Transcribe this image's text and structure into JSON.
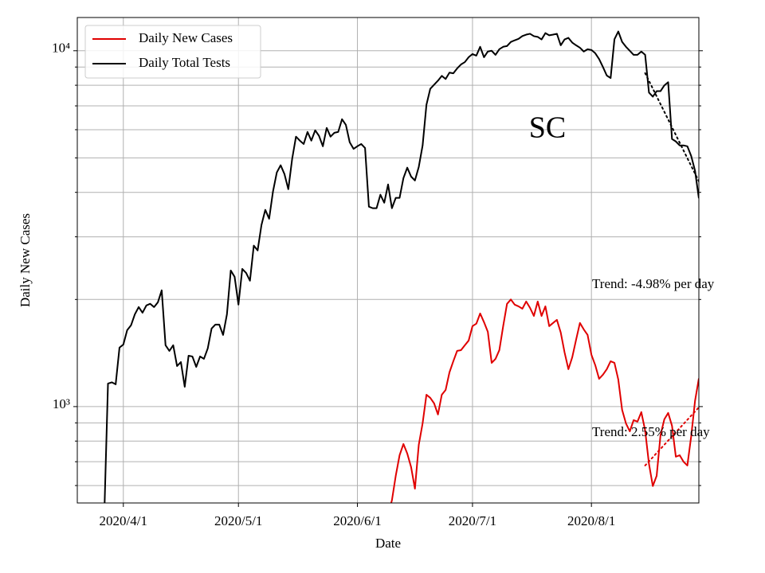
{
  "chart_data": {
    "type": "line",
    "title": "SC",
    "x_label": "Date",
    "y_label": "Daily New Cases",
    "log_scale": true,
    "grid": true,
    "legend_position": "upper-left",
    "xlim": [
      "2020-03-20",
      "2020-08-29"
    ],
    "xticks": [
      {
        "value": "2020-04-01",
        "label": "2020/4/1"
      },
      {
        "value": "2020-05-01",
        "label": "2020/5/1"
      },
      {
        "value": "2020-06-01",
        "label": "2020/6/1"
      },
      {
        "value": "2020-07-01",
        "label": "2020/7/1"
      },
      {
        "value": "2020-08-01",
        "label": "2020/8/1"
      }
    ],
    "ylim": [
      536,
      12400
    ],
    "yticks": [
      {
        "value": 1000,
        "label": "10³"
      },
      {
        "value": 10000,
        "label": "10⁴"
      }
    ],
    "yticks_minor": [
      600,
      700,
      800,
      900,
      2000,
      3000,
      4000,
      5000,
      6000,
      7000,
      8000,
      9000
    ],
    "x": [
      "2020-03-27",
      "2020-03-28",
      "2020-03-29",
      "2020-03-30",
      "2020-03-31",
      "2020-04-01",
      "2020-04-02",
      "2020-04-03",
      "2020-04-04",
      "2020-04-05",
      "2020-04-06",
      "2020-04-07",
      "2020-04-08",
      "2020-04-09",
      "2020-04-10",
      "2020-04-11",
      "2020-04-12",
      "2020-04-13",
      "2020-04-14",
      "2020-04-15",
      "2020-04-16",
      "2020-04-17",
      "2020-04-18",
      "2020-04-19",
      "2020-04-20",
      "2020-04-21",
      "2020-04-22",
      "2020-04-23",
      "2020-04-24",
      "2020-04-25",
      "2020-04-26",
      "2020-04-27",
      "2020-04-28",
      "2020-04-29",
      "2020-04-30",
      "2020-05-01",
      "2020-05-02",
      "2020-05-03",
      "2020-05-04",
      "2020-05-05",
      "2020-05-06",
      "2020-05-07",
      "2020-05-08",
      "2020-05-09",
      "2020-05-10",
      "2020-05-11",
      "2020-05-12",
      "2020-05-13",
      "2020-05-14",
      "2020-05-15",
      "2020-05-16",
      "2020-05-17",
      "2020-05-18",
      "2020-05-19",
      "2020-05-20",
      "2020-05-21",
      "2020-05-22",
      "2020-05-23",
      "2020-05-24",
      "2020-05-25",
      "2020-05-26",
      "2020-05-27",
      "2020-05-28",
      "2020-05-29",
      "2020-05-30",
      "2020-05-31",
      "2020-06-01",
      "2020-06-02",
      "2020-06-03",
      "2020-06-04",
      "2020-06-05",
      "2020-06-06",
      "2020-06-07",
      "2020-06-08",
      "2020-06-09",
      "2020-06-10",
      "2020-06-11",
      "2020-06-12",
      "2020-06-13",
      "2020-06-14",
      "2020-06-15",
      "2020-06-16",
      "2020-06-17",
      "2020-06-18",
      "2020-06-19",
      "2020-06-20",
      "2020-06-21",
      "2020-06-22",
      "2020-06-23",
      "2020-06-24",
      "2020-06-25",
      "2020-06-26",
      "2020-06-27",
      "2020-06-28",
      "2020-06-29",
      "2020-06-30",
      "2020-07-01",
      "2020-07-02",
      "2020-07-03",
      "2020-07-04",
      "2020-07-05",
      "2020-07-06",
      "2020-07-07",
      "2020-07-08",
      "2020-07-09",
      "2020-07-10",
      "2020-07-11",
      "2020-07-12",
      "2020-07-13",
      "2020-07-14",
      "2020-07-15",
      "2020-07-16",
      "2020-07-17",
      "2020-07-18",
      "2020-07-19",
      "2020-07-20",
      "2020-07-21",
      "2020-07-22",
      "2020-07-23",
      "2020-07-24",
      "2020-07-25",
      "2020-07-26",
      "2020-07-27",
      "2020-07-28",
      "2020-07-29",
      "2020-07-30",
      "2020-07-31",
      "2020-08-01",
      "2020-08-02",
      "2020-08-03",
      "2020-08-04",
      "2020-08-05",
      "2020-08-06",
      "2020-08-07",
      "2020-08-08",
      "2020-08-09",
      "2020-08-10",
      "2020-08-11",
      "2020-08-12",
      "2020-08-13",
      "2020-08-14",
      "2020-08-15",
      "2020-08-16",
      "2020-08-17",
      "2020-08-18",
      "2020-08-19",
      "2020-08-20",
      "2020-08-21",
      "2020-08-22",
      "2020-08-23",
      "2020-08-24",
      "2020-08-25",
      "2020-08-26",
      "2020-08-27",
      "2020-08-28",
      "2020-08-29"
    ],
    "series": [
      {
        "name": "Daily New Cases",
        "color": "#e00000",
        "values": [
          null,
          null,
          null,
          null,
          null,
          null,
          null,
          null,
          null,
          null,
          null,
          null,
          null,
          null,
          null,
          null,
          null,
          null,
          null,
          null,
          null,
          null,
          null,
          null,
          null,
          null,
          null,
          null,
          null,
          null,
          null,
          null,
          null,
          null,
          null,
          null,
          null,
          null,
          null,
          null,
          null,
          null,
          null,
          null,
          null,
          null,
          null,
          null,
          null,
          null,
          null,
          null,
          null,
          null,
          null,
          null,
          null,
          null,
          null,
          null,
          null,
          null,
          null,
          null,
          null,
          null,
          null,
          null,
          null,
          null,
          null,
          null,
          null,
          null,
          500,
          545,
          639,
          730,
          785,
          738,
          676,
          588,
          781,
          897,
          1080,
          1058,
          1021,
          950,
          1080,
          1114,
          1248,
          1341,
          1434,
          1441,
          1487,
          1533,
          1683,
          1710,
          1827,
          1727,
          1622,
          1327,
          1362,
          1441,
          1683,
          1944,
          2000,
          1934,
          1913,
          1884,
          1974,
          1894,
          1798,
          1974,
          1798,
          1913,
          1683,
          1718,
          1753,
          1615,
          1420,
          1274,
          1376,
          1541,
          1718,
          1648,
          1590,
          1398,
          1307,
          1197,
          1229,
          1274,
          1341,
          1327,
          1191,
          979,
          897,
          852,
          916,
          907,
          965,
          857,
          690,
          598,
          639,
          831,
          921,
          960,
          883,
          723,
          730,
          700,
          683,
          825,
          1037,
          1200
        ]
      },
      {
        "name": "Daily Total Tests",
        "color": "#000000",
        "values": [
          480,
          1161,
          1170,
          1155,
          1465,
          1494,
          1640,
          1692,
          1817,
          1904,
          1836,
          1924,
          1945,
          1904,
          1963,
          2122,
          1487,
          1434,
          1487,
          1300,
          1334,
          1137,
          1390,
          1383,
          1293,
          1383,
          1362,
          1457,
          1657,
          1700,
          1700,
          1590,
          1817,
          2412,
          2316,
          1935,
          2437,
          2375,
          2258,
          2834,
          2747,
          3238,
          3572,
          3372,
          4020,
          4550,
          4767,
          4500,
          4083,
          4968,
          5736,
          5590,
          5470,
          5914,
          5590,
          5976,
          5765,
          5390,
          6070,
          5736,
          5880,
          5914,
          6420,
          6190,
          5532,
          5300,
          5390,
          5470,
          5330,
          3647,
          3610,
          3610,
          3940,
          3740,
          4210,
          3610,
          3860,
          3860,
          4386,
          4693,
          4430,
          4320,
          4716,
          5416,
          7050,
          7820,
          8030,
          8240,
          8500,
          8330,
          8680,
          8640,
          8920,
          9150,
          9290,
          9590,
          9790,
          9690,
          10260,
          9590,
          9950,
          10000,
          9740,
          10100,
          10260,
          10310,
          10590,
          10700,
          10800,
          11000,
          11100,
          11160,
          10990,
          10940,
          10760,
          11210,
          11050,
          11100,
          11160,
          10360,
          10760,
          10870,
          10540,
          10360,
          10200,
          9950,
          10100,
          10050,
          9840,
          9480,
          9000,
          8520,
          8380,
          10770,
          11330,
          10590,
          10260,
          10000,
          9740,
          9740,
          9950,
          9740,
          7630,
          7430,
          7700,
          7700,
          7990,
          8160,
          5650,
          5560,
          5420,
          5420,
          5390,
          5060,
          4600,
          3850
        ]
      }
    ],
    "trend_lines": [
      {
        "x": [
          "2020-08-15",
          "2020-08-29"
        ],
        "values": [
          8650,
          4295
        ],
        "color": "#000000"
      },
      {
        "x": [
          "2020-08-15",
          "2020-08-29"
        ],
        "values": [
          683,
          995
        ],
        "color": "#e00000"
      }
    ],
    "annotations": [
      "Trend: -4.98% per day",
      "Trend: 2.55% per day"
    ]
  }
}
